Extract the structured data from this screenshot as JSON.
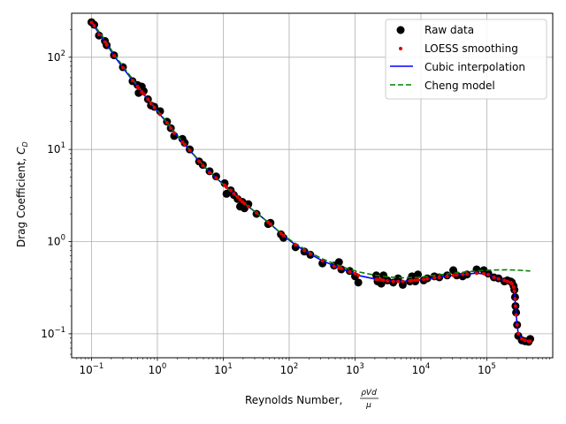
{
  "chart_data": {
    "type": "scatter",
    "xlabel": "Reynolds Number,",
    "xlabel_fraction": {
      "numerator": "ρVd",
      "denominator": "μ"
    },
    "ylabel": "Drag Coefficient,",
    "ylabel_symbol": {
      "base": "C",
      "subscript": "D"
    },
    "x_scale": "log",
    "y_scale": "log",
    "xlim": [
      0.05,
      1000000
    ],
    "ylim": [
      0.055,
      300
    ],
    "grid": true,
    "legend_position": "upper right",
    "x_tick_labels": [
      {
        "value": 0.1,
        "base": "10",
        "exp": "−1"
      },
      {
        "value": 1,
        "base": "10",
        "exp": "0"
      },
      {
        "value": 10,
        "base": "10",
        "exp": "1"
      },
      {
        "value": 100,
        "base": "10",
        "exp": "2"
      },
      {
        "value": 1000,
        "base": "10",
        "exp": "3"
      },
      {
        "value": 10000,
        "base": "10",
        "exp": "4"
      },
      {
        "value": 100000,
        "base": "10",
        "exp": "5"
      }
    ],
    "y_tick_labels": [
      {
        "value": 0.1,
        "base": "10",
        "exp": "−1"
      },
      {
        "value": 1,
        "base": "10",
        "exp": "0"
      },
      {
        "value": 10,
        "base": "10",
        "exp": "1"
      },
      {
        "value": 100,
        "base": "10",
        "exp": "2"
      }
    ],
    "series": [
      {
        "name": "Raw data",
        "kind": "scatter",
        "color": "#000000",
        "points": [
          [
            0.1,
            240
          ],
          [
            0.11,
            225
          ],
          [
            0.13,
            172
          ],
          [
            0.16,
            150
          ],
          [
            0.17,
            135
          ],
          [
            0.22,
            105
          ],
          [
            0.3,
            78
          ],
          [
            0.42,
            55
          ],
          [
            0.5,
            50
          ],
          [
            0.52,
            41
          ],
          [
            0.58,
            48
          ],
          [
            0.62,
            43
          ],
          [
            0.72,
            35
          ],
          [
            0.8,
            30
          ],
          [
            0.9,
            29
          ],
          [
            1.1,
            26
          ],
          [
            1.4,
            20
          ],
          [
            1.6,
            17
          ],
          [
            1.8,
            14
          ],
          [
            2.4,
            13
          ],
          [
            2.6,
            11.8
          ],
          [
            3.1,
            10
          ],
          [
            4.3,
            7.4
          ],
          [
            4.9,
            6.8
          ],
          [
            6.2,
            5.8
          ],
          [
            7.8,
            5.1
          ],
          [
            10.5,
            4.3
          ],
          [
            11.2,
            3.3
          ],
          [
            13,
            3.6
          ],
          [
            14.5,
            3.2
          ],
          [
            16.5,
            2.9
          ],
          [
            18,
            2.4
          ],
          [
            19.5,
            2.7
          ],
          [
            21,
            2.3
          ],
          [
            24,
            2.55
          ],
          [
            32,
            2.0
          ],
          [
            48,
            1.55
          ],
          [
            52,
            1.6
          ],
          [
            75,
            1.2
          ],
          [
            82,
            1.1
          ],
          [
            125,
            0.87
          ],
          [
            170,
            0.78
          ],
          [
            210,
            0.72
          ],
          [
            320,
            0.58
          ],
          [
            480,
            0.55
          ],
          [
            570,
            0.6
          ],
          [
            620,
            0.5
          ],
          [
            830,
            0.48
          ],
          [
            1000,
            0.42
          ],
          [
            1120,
            0.36
          ],
          [
            2100,
            0.43
          ],
          [
            2200,
            0.37
          ],
          [
            2500,
            0.35
          ],
          [
            2700,
            0.43
          ],
          [
            3100,
            0.38
          ],
          [
            3800,
            0.36
          ],
          [
            4500,
            0.4
          ],
          [
            5300,
            0.34
          ],
          [
            6800,
            0.37
          ],
          [
            7300,
            0.42
          ],
          [
            8200,
            0.37
          ],
          [
            9000,
            0.44
          ],
          [
            11000,
            0.38
          ],
          [
            12500,
            0.4
          ],
          [
            16000,
            0.42
          ],
          [
            19000,
            0.41
          ],
          [
            25000,
            0.43
          ],
          [
            31000,
            0.49
          ],
          [
            35000,
            0.43
          ],
          [
            43000,
            0.42
          ],
          [
            50000,
            0.44
          ],
          [
            70000,
            0.5
          ],
          [
            90000,
            0.49
          ],
          [
            105000,
            0.45
          ],
          [
            128000,
            0.41
          ],
          [
            150000,
            0.4
          ],
          [
            185000,
            0.37
          ],
          [
            205000,
            0.38
          ],
          [
            230000,
            0.37
          ],
          [
            240000,
            0.36
          ],
          [
            255000,
            0.33
          ],
          [
            262000,
            0.3
          ],
          [
            268000,
            0.25
          ],
          [
            272000,
            0.2
          ],
          [
            278000,
            0.17
          ],
          [
            288000,
            0.125
          ],
          [
            300000,
            0.095
          ],
          [
            340000,
            0.085
          ],
          [
            380000,
            0.083
          ],
          [
            430000,
            0.082
          ],
          [
            455000,
            0.088
          ]
        ]
      },
      {
        "name": "LOESS smoothing",
        "kind": "scatter-small",
        "color": "#e00000",
        "points": [
          [
            0.1,
            238
          ],
          [
            0.11,
            220
          ],
          [
            0.13,
            176
          ],
          [
            0.16,
            146
          ],
          [
            0.17,
            136
          ],
          [
            0.22,
            104
          ],
          [
            0.3,
            77
          ],
          [
            0.42,
            56
          ],
          [
            0.5,
            48
          ],
          [
            0.52,
            46
          ],
          [
            0.58,
            42
          ],
          [
            0.62,
            40
          ],
          [
            0.72,
            35
          ],
          [
            0.8,
            31.5
          ],
          [
            0.9,
            28.5
          ],
          [
            1.1,
            24
          ],
          [
            1.4,
            19.5
          ],
          [
            1.6,
            17
          ],
          [
            1.8,
            15
          ],
          [
            2.4,
            12
          ],
          [
            2.6,
            11.3
          ],
          [
            3.1,
            9.8
          ],
          [
            4.3,
            7.4
          ],
          [
            4.9,
            6.7
          ],
          [
            6.2,
            5.6
          ],
          [
            7.8,
            4.9
          ],
          [
            10.5,
            4.1
          ],
          [
            11.2,
            3.9
          ],
          [
            13,
            3.6
          ],
          [
            14.5,
            3.3
          ],
          [
            16.5,
            3.05
          ],
          [
            18,
            2.85
          ],
          [
            19.5,
            2.7
          ],
          [
            21,
            2.6
          ],
          [
            24,
            2.4
          ],
          [
            32,
            2.05
          ],
          [
            48,
            1.62
          ],
          [
            52,
            1.55
          ],
          [
            75,
            1.23
          ],
          [
            82,
            1.16
          ],
          [
            125,
            0.92
          ],
          [
            170,
            0.8
          ],
          [
            210,
            0.73
          ],
          [
            320,
            0.62
          ],
          [
            480,
            0.54
          ],
          [
            570,
            0.52
          ],
          [
            620,
            0.51
          ],
          [
            830,
            0.47
          ],
          [
            1000,
            0.45
          ],
          [
            1120,
            0.43
          ],
          [
            2100,
            0.39
          ],
          [
            2200,
            0.39
          ],
          [
            2500,
            0.385
          ],
          [
            2700,
            0.38
          ],
          [
            3100,
            0.375
          ],
          [
            3800,
            0.37
          ],
          [
            4500,
            0.37
          ],
          [
            5300,
            0.37
          ],
          [
            6800,
            0.375
          ],
          [
            7300,
            0.378
          ],
          [
            8200,
            0.38
          ],
          [
            9000,
            0.383
          ],
          [
            11000,
            0.39
          ],
          [
            12500,
            0.395
          ],
          [
            16000,
            0.405
          ],
          [
            19000,
            0.41
          ],
          [
            25000,
            0.42
          ],
          [
            31000,
            0.43
          ],
          [
            35000,
            0.435
          ],
          [
            43000,
            0.44
          ],
          [
            50000,
            0.445
          ],
          [
            70000,
            0.455
          ],
          [
            90000,
            0.45
          ],
          [
            105000,
            0.44
          ],
          [
            128000,
            0.41
          ],
          [
            150000,
            0.395
          ],
          [
            185000,
            0.38
          ],
          [
            205000,
            0.37
          ],
          [
            230000,
            0.36
          ],
          [
            240000,
            0.35
          ],
          [
            255000,
            0.32
          ],
          [
            262000,
            0.29
          ],
          [
            268000,
            0.24
          ],
          [
            272000,
            0.2
          ],
          [
            278000,
            0.16
          ],
          [
            288000,
            0.125
          ],
          [
            300000,
            0.1
          ],
          [
            340000,
            0.088
          ],
          [
            380000,
            0.085
          ],
          [
            430000,
            0.083
          ],
          [
            455000,
            0.083
          ]
        ]
      },
      {
        "name": "Cubic interpolation",
        "kind": "line",
        "color": "#0000ff",
        "dash": "",
        "points": [
          [
            0.1,
            238
          ],
          [
            0.16,
            148
          ],
          [
            0.22,
            104
          ],
          [
            0.3,
            77
          ],
          [
            0.42,
            56
          ],
          [
            0.58,
            42
          ],
          [
            0.8,
            31.5
          ],
          [
            1.1,
            24
          ],
          [
            1.6,
            17
          ],
          [
            2.4,
            12
          ],
          [
            3.1,
            9.8
          ],
          [
            4.9,
            6.7
          ],
          [
            7.8,
            4.9
          ],
          [
            11.2,
            3.9
          ],
          [
            16.5,
            3.05
          ],
          [
            24,
            2.4
          ],
          [
            32,
            2.05
          ],
          [
            52,
            1.55
          ],
          [
            82,
            1.16
          ],
          [
            125,
            0.92
          ],
          [
            210,
            0.73
          ],
          [
            320,
            0.62
          ],
          [
            570,
            0.52
          ],
          [
            830,
            0.47
          ],
          [
            1120,
            0.43
          ],
          [
            2100,
            0.39
          ],
          [
            3100,
            0.375
          ],
          [
            5300,
            0.37
          ],
          [
            9000,
            0.383
          ],
          [
            16000,
            0.405
          ],
          [
            31000,
            0.43
          ],
          [
            50000,
            0.445
          ],
          [
            70000,
            0.455
          ],
          [
            105000,
            0.44
          ],
          [
            150000,
            0.395
          ],
          [
            205000,
            0.37
          ],
          [
            240000,
            0.35
          ],
          [
            262000,
            0.29
          ],
          [
            272000,
            0.2
          ],
          [
            288000,
            0.125
          ],
          [
            300000,
            0.1
          ],
          [
            340000,
            0.088
          ],
          [
            430000,
            0.083
          ],
          [
            455000,
            0.083
          ]
        ]
      },
      {
        "name": "Cheng model",
        "kind": "line",
        "color": "#008000",
        "dash": "6,3",
        "points": [
          [
            0.1,
            245
          ],
          [
            0.16,
            155
          ],
          [
            0.22,
            108
          ],
          [
            0.3,
            80
          ],
          [
            0.42,
            58
          ],
          [
            0.58,
            43
          ],
          [
            0.8,
            32
          ],
          [
            1.1,
            24.5
          ],
          [
            1.6,
            17.3
          ],
          [
            2.4,
            12.2
          ],
          [
            3.1,
            9.9
          ],
          [
            4.9,
            6.8
          ],
          [
            7.8,
            4.9
          ],
          [
            11.2,
            3.85
          ],
          [
            16.5,
            3.0
          ],
          [
            24,
            2.4
          ],
          [
            32,
            2.05
          ],
          [
            52,
            1.55
          ],
          [
            82,
            1.17
          ],
          [
            125,
            0.95
          ],
          [
            210,
            0.76
          ],
          [
            320,
            0.65
          ],
          [
            570,
            0.55
          ],
          [
            830,
            0.5
          ],
          [
            1120,
            0.47
          ],
          [
            2100,
            0.43
          ],
          [
            3100,
            0.415
          ],
          [
            5300,
            0.405
          ],
          [
            9000,
            0.41
          ],
          [
            16000,
            0.43
          ],
          [
            31000,
            0.455
          ],
          [
            50000,
            0.47
          ],
          [
            100000,
            0.49
          ],
          [
            200000,
            0.495
          ],
          [
            300000,
            0.49
          ],
          [
            455000,
            0.48
          ]
        ]
      }
    ]
  }
}
